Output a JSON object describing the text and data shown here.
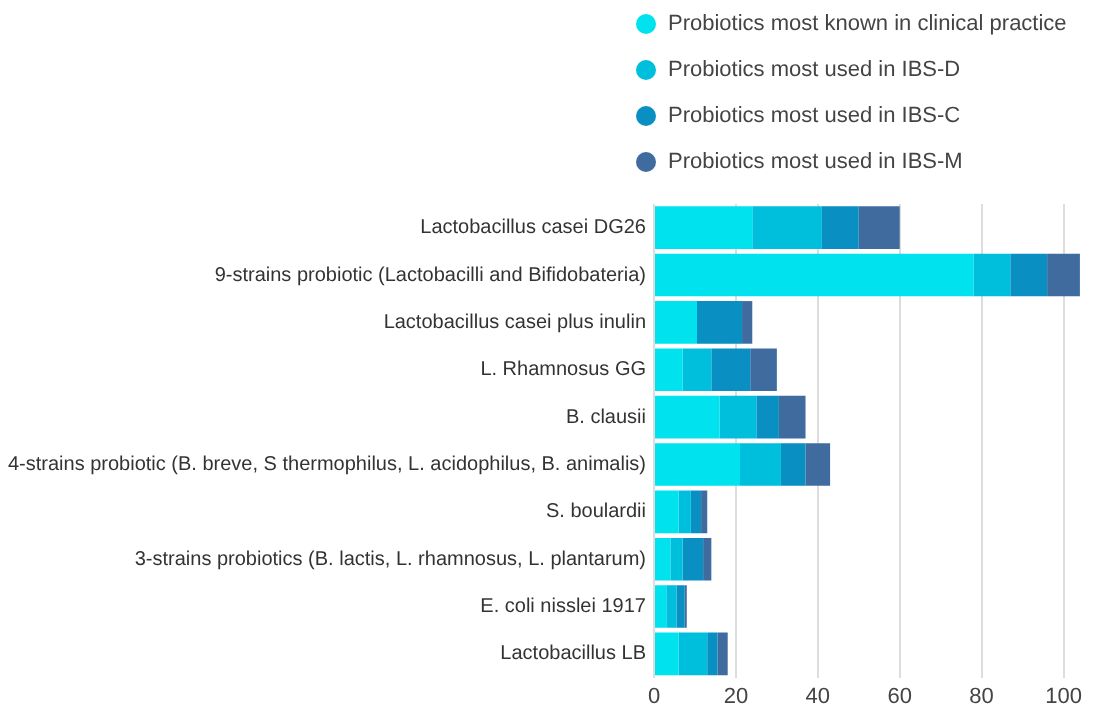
{
  "chart_data": {
    "type": "bar",
    "orientation": "horizontal",
    "stacked": true,
    "categories": [
      "Lactobacillus casei DG26",
      "9-strains probiotic (Lactobacilli and Bifidobateria)",
      "Lactobacillus casei plus inulin",
      "L. Rhamnosus GG",
      "B. clausii",
      "4-strains probiotic (B. breve, S thermophilus, L. acidophilus, B. animalis)",
      "S. boulardii",
      "3-strains probiotics (B. lactis, L. rhamnosus, L. plantarum)",
      "E. coli nisslei 1917",
      "Lactobacillus LB"
    ],
    "series": [
      {
        "name": "Probiotics most known in clinical practice",
        "color": "#00e3ef",
        "values": [
          24,
          78,
          10.5,
          7,
          16,
          21,
          6,
          4,
          3,
          6
        ]
      },
      {
        "name": "Probiotics most used in IBS-D",
        "color": "#00bfdc",
        "values": [
          17,
          9,
          0,
          7,
          9,
          10,
          3,
          3,
          2.5,
          7
        ]
      },
      {
        "name": "Probiotics most used in IBS-C",
        "color": "#0a8fc2",
        "values": [
          9,
          9,
          11,
          9.5,
          5.5,
          6,
          2.5,
          5,
          2,
          2.5
        ]
      },
      {
        "name": "Probiotics most used in IBS-M",
        "color": "#3f6b9f",
        "values": [
          10,
          8,
          2.5,
          6.5,
          6.5,
          6,
          1.5,
          2,
          0.5,
          2.5
        ]
      }
    ],
    "xlim": [
      0,
      105
    ],
    "xticks": [
      0,
      20,
      40,
      60,
      80,
      100
    ],
    "grid": "x",
    "legend": "top right"
  }
}
